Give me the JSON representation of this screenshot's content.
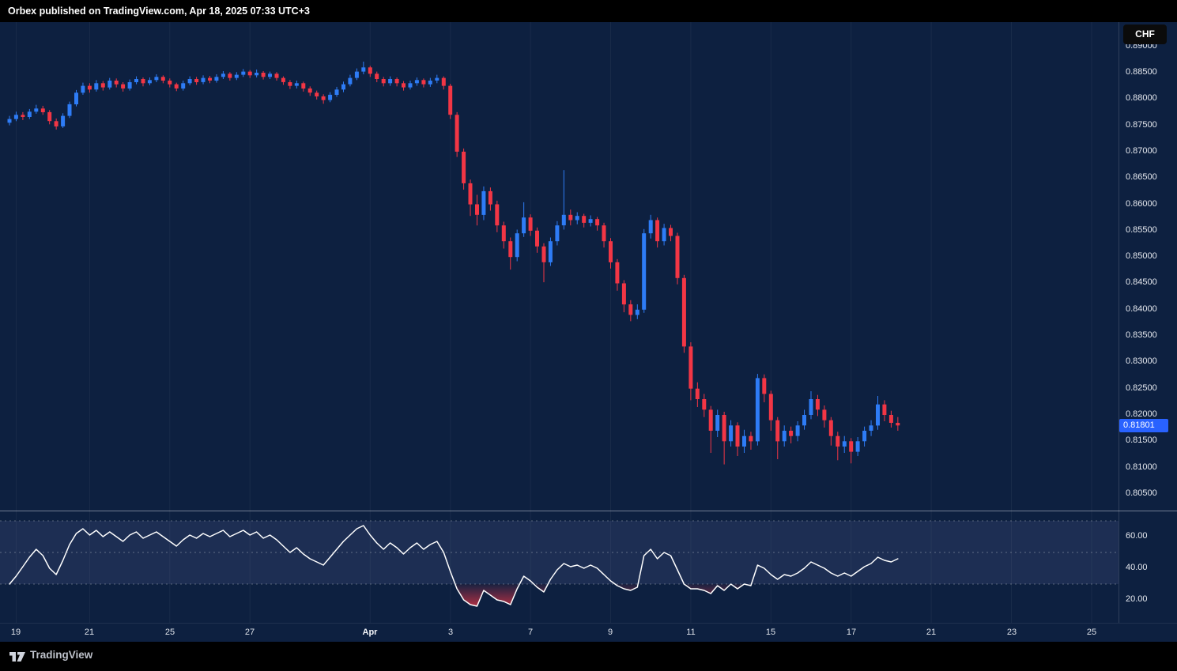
{
  "meta": {
    "attribution": "Orbex published on TradingView.com, Apr 18, 2025 07:33 UTC+3"
  },
  "symbol_button": {
    "label": "CHF"
  },
  "footer": {
    "label": "TradingView"
  },
  "colors": {
    "background": "#000000",
    "pane_bg": "#0d2040",
    "candle_up": "#2e7cf6",
    "candle_down": "#f23645",
    "price_badge_bg": "#2962ff",
    "rsi_line": "#ffffff",
    "rsi_band_line": "rgba(255,255,255,0.30)",
    "rsi_band_fill": "rgba(125,135,200,0.14)",
    "rsi_oversold_color": "#f23645",
    "axis_text": "#e6e9ef",
    "grid_line": "rgba(255,255,255,0.05)"
  },
  "price_axis": {
    "labels": [
      "0.89000",
      "0.88500",
      "0.88000",
      "0.87500",
      "0.87000",
      "0.86500",
      "0.86000",
      "0.85500",
      "0.85000",
      "0.84500",
      "0.84000",
      "0.83500",
      "0.83000",
      "0.82500",
      "0.82000",
      "0.81500",
      "0.81000",
      "0.80500"
    ],
    "current_price": "0.81801"
  },
  "rsi_axis": {
    "labels": [
      {
        "value": 60,
        "text": "60.00"
      },
      {
        "value": 40,
        "text": "40.00"
      },
      {
        "value": 20,
        "text": "20.00"
      }
    ]
  },
  "time_axis": {
    "ticks": [
      {
        "label": "19",
        "index": 1
      },
      {
        "label": "21",
        "index": 12
      },
      {
        "label": "25",
        "index": 24
      },
      {
        "label": "27",
        "index": 36
      },
      {
        "label": "Apr",
        "index": 54,
        "month": true
      },
      {
        "label": "3",
        "index": 66
      },
      {
        "label": "7",
        "index": 78
      },
      {
        "label": "9",
        "index": 90
      },
      {
        "label": "11",
        "index": 102
      },
      {
        "label": "15",
        "index": 114
      },
      {
        "label": "17",
        "index": 126
      },
      {
        "label": "21",
        "index": 138
      },
      {
        "label": "23",
        "index": 150
      },
      {
        "label": "25",
        "index": 162
      }
    ]
  },
  "chart_data": [
    {
      "type": "candlestick",
      "pane": "price",
      "timeframe": "4h",
      "quote_currency": "CHF",
      "ylim": [
        0.802,
        0.8946
      ],
      "axis_step": 0.005,
      "price_scale_factor": 10000,
      "last_price": 0.81801,
      "ohlc": [
        [
          8755,
          8768,
          8750,
          8762
        ],
        [
          8762,
          8776,
          8758,
          8770
        ],
        [
          8770,
          8775,
          8760,
          8766
        ],
        [
          8766,
          8781,
          8762,
          8776
        ],
        [
          8776,
          8789,
          8772,
          8782
        ],
        [
          8782,
          8787,
          8770,
          8775
        ],
        [
          8775,
          8779,
          8752,
          8758
        ],
        [
          8758,
          8763,
          8742,
          8748
        ],
        [
          8748,
          8773,
          8745,
          8768
        ],
        [
          8768,
          8795,
          8764,
          8790
        ],
        [
          8790,
          8817,
          8786,
          8812
        ],
        [
          8812,
          8831,
          8808,
          8825
        ],
        [
          8825,
          8830,
          8812,
          8818
        ],
        [
          8818,
          8836,
          8814,
          8830
        ],
        [
          8830,
          8834,
          8816,
          8822
        ],
        [
          8822,
          8840,
          8818,
          8835
        ],
        [
          8835,
          8839,
          8822,
          8828
        ],
        [
          8828,
          8832,
          8814,
          8820
        ],
        [
          8820,
          8837,
          8816,
          8832
        ],
        [
          8832,
          8843,
          8828,
          8838
        ],
        [
          8838,
          8841,
          8824,
          8830
        ],
        [
          8830,
          8841,
          8826,
          8836
        ],
        [
          8836,
          8847,
          8832,
          8842
        ],
        [
          8842,
          8845,
          8830,
          8835
        ],
        [
          8835,
          8839,
          8822,
          8828
        ],
        [
          8828,
          8831,
          8815,
          8820
        ],
        [
          8820,
          8835,
          8816,
          8830
        ],
        [
          8830,
          8843,
          8826,
          8838
        ],
        [
          8838,
          8842,
          8827,
          8832
        ],
        [
          8832,
          8845,
          8828,
          8840
        ],
        [
          8840,
          8844,
          8830,
          8835
        ],
        [
          8835,
          8847,
          8831,
          8842
        ],
        [
          8842,
          8853,
          8838,
          8848
        ],
        [
          8848,
          8851,
          8835,
          8840
        ],
        [
          8840,
          8851,
          8836,
          8846
        ],
        [
          8846,
          8857,
          8842,
          8852
        ],
        [
          8852,
          8855,
          8840,
          8845
        ],
        [
          8845,
          8856,
          8841,
          8850
        ],
        [
          8850,
          8853,
          8837,
          8842
        ],
        [
          8842,
          8852,
          8838,
          8848
        ],
        [
          8848,
          8851,
          8835,
          8840
        ],
        [
          8840,
          8843,
          8827,
          8832
        ],
        [
          8832,
          8836,
          8819,
          8825
        ],
        [
          8825,
          8835,
          8820,
          8830
        ],
        [
          8830,
          8833,
          8814,
          8820
        ],
        [
          8820,
          8824,
          8806,
          8812
        ],
        [
          8812,
          8816,
          8799,
          8805
        ],
        [
          8805,
          8809,
          8791,
          8798
        ],
        [
          8798,
          8813,
          8794,
          8808
        ],
        [
          8808,
          8823,
          8804,
          8818
        ],
        [
          8818,
          8833,
          8813,
          8828
        ],
        [
          8828,
          8846,
          8824,
          8840
        ],
        [
          8840,
          8858,
          8836,
          8852
        ],
        [
          8852,
          8871,
          8847,
          8860
        ],
        [
          8860,
          8863,
          8842,
          8848
        ],
        [
          8848,
          8852,
          8832,
          8838
        ],
        [
          8838,
          8842,
          8824,
          8830
        ],
        [
          8830,
          8843,
          8825,
          8838
        ],
        [
          8838,
          8841,
          8824,
          8830
        ],
        [
          8830,
          8834,
          8816,
          8822
        ],
        [
          8822,
          8835,
          8818,
          8830
        ],
        [
          8830,
          8841,
          8825,
          8836
        ],
        [
          8836,
          8839,
          8822,
          8828
        ],
        [
          8828,
          8840,
          8823,
          8835
        ],
        [
          8835,
          8846,
          8830,
          8840
        ],
        [
          8840,
          8843,
          8818,
          8825
        ],
        [
          8825,
          8829,
          8762,
          8770
        ],
        [
          8770,
          8775,
          8690,
          8700
        ],
        [
          8700,
          8706,
          8628,
          8640
        ],
        [
          8640,
          8647,
          8578,
          8600
        ],
        [
          8600,
          8618,
          8560,
          8580
        ],
        [
          8580,
          8634,
          8570,
          8625
        ],
        [
          8625,
          8632,
          8588,
          8600
        ],
        [
          8600,
          8607,
          8547,
          8560
        ],
        [
          8560,
          8567,
          8516,
          8530
        ],
        [
          8530,
          8537,
          8476,
          8500
        ],
        [
          8500,
          8552,
          8492,
          8545
        ],
        [
          8545,
          8604,
          8538,
          8575
        ],
        [
          8575,
          8581,
          8540,
          8550
        ],
        [
          8550,
          8556,
          8508,
          8520
        ],
        [
          8520,
          8526,
          8452,
          8490
        ],
        [
          8490,
          8537,
          8483,
          8530
        ],
        [
          8530,
          8568,
          8522,
          8560
        ],
        [
          8560,
          8665,
          8552,
          8580
        ],
        [
          8580,
          8590,
          8560,
          8570
        ],
        [
          8570,
          8585,
          8562,
          8578
        ],
        [
          8578,
          8582,
          8556,
          8565
        ],
        [
          8565,
          8579,
          8558,
          8572
        ],
        [
          8572,
          8576,
          8550,
          8560
        ],
        [
          8560,
          8565,
          8518,
          8530
        ],
        [
          8530,
          8536,
          8478,
          8490
        ],
        [
          8490,
          8496,
          8436,
          8450
        ],
        [
          8450,
          8456,
          8395,
          8410
        ],
        [
          8410,
          8418,
          8378,
          8390
        ],
        [
          8390,
          8410,
          8382,
          8400
        ],
        [
          8400,
          8553,
          8394,
          8545
        ],
        [
          8545,
          8580,
          8535,
          8570
        ],
        [
          8570,
          8575,
          8518,
          8530
        ],
        [
          8530,
          8563,
          8522,
          8555
        ],
        [
          8555,
          8561,
          8530,
          8540
        ],
        [
          8540,
          8546,
          8448,
          8460
        ],
        [
          8460,
          8466,
          8318,
          8330
        ],
        [
          8330,
          8338,
          8228,
          8250
        ],
        [
          8250,
          8262,
          8215,
          8230
        ],
        [
          8230,
          8240,
          8196,
          8210
        ],
        [
          8210,
          8217,
          8128,
          8170
        ],
        [
          8170,
          8210,
          8158,
          8200
        ],
        [
          8200,
          8206,
          8106,
          8150
        ],
        [
          8150,
          8190,
          8140,
          8180
        ],
        [
          8180,
          8186,
          8122,
          8140
        ],
        [
          8140,
          8172,
          8128,
          8160
        ],
        [
          8160,
          8168,
          8134,
          8150
        ],
        [
          8150,
          8278,
          8142,
          8270
        ],
        [
          8270,
          8277,
          8224,
          8240
        ],
        [
          8240,
          8246,
          8170,
          8190
        ],
        [
          8190,
          8196,
          8116,
          8150
        ],
        [
          8150,
          8180,
          8140,
          8170
        ],
        [
          8170,
          8178,
          8146,
          8160
        ],
        [
          8160,
          8188,
          8150,
          8180
        ],
        [
          8180,
          8210,
          8172,
          8200
        ],
        [
          8200,
          8245,
          8192,
          8230
        ],
        [
          8230,
          8238,
          8198,
          8210
        ],
        [
          8210,
          8218,
          8176,
          8190
        ],
        [
          8190,
          8196,
          8142,
          8160
        ],
        [
          8160,
          8168,
          8114,
          8140
        ],
        [
          8140,
          8160,
          8128,
          8150
        ],
        [
          8150,
          8156,
          8108,
          8130
        ],
        [
          8130,
          8158,
          8122,
          8150
        ],
        [
          8150,
          8178,
          8140,
          8170
        ],
        [
          8170,
          8190,
          8160,
          8180
        ],
        [
          8180,
          8236,
          8172,
          8220
        ],
        [
          8220,
          8228,
          8188,
          8200
        ],
        [
          8200,
          8208,
          8176,
          8185
        ],
        [
          8185,
          8196,
          8170,
          8180
        ]
      ]
    },
    {
      "type": "line",
      "pane": "rsi",
      "name": "RSI",
      "ylim": [
        0,
        100
      ],
      "bands": [
        70,
        50,
        30
      ],
      "values": [
        30,
        35,
        41,
        47,
        52,
        48,
        40,
        36,
        45,
        55,
        62,
        65,
        61,
        64,
        60,
        63,
        60,
        57,
        61,
        63,
        59,
        61,
        63,
        60,
        57,
        54,
        58,
        61,
        59,
        62,
        60,
        62,
        64,
        60,
        62,
        64,
        61,
        63,
        59,
        61,
        58,
        54,
        50,
        53,
        49,
        46,
        44,
        42,
        47,
        52,
        57,
        61,
        65,
        67,
        61,
        56,
        52,
        56,
        53,
        49,
        53,
        56,
        52,
        55,
        57,
        50,
        38,
        27,
        20,
        17,
        16,
        26,
        23,
        20,
        19,
        17,
        27,
        35,
        32,
        28,
        25,
        33,
        39,
        43,
        41,
        42,
        40,
        42,
        40,
        36,
        32,
        29,
        27,
        26,
        28,
        48,
        52,
        46,
        50,
        48,
        39,
        30,
        27,
        27,
        26,
        24,
        29,
        26,
        30,
        27,
        30,
        29,
        42,
        40,
        36,
        33,
        36,
        35,
        37,
        40,
        44,
        42,
        40,
        37,
        35,
        37,
        35,
        38,
        41,
        43,
        47,
        45,
        44,
        46
      ]
    }
  ]
}
